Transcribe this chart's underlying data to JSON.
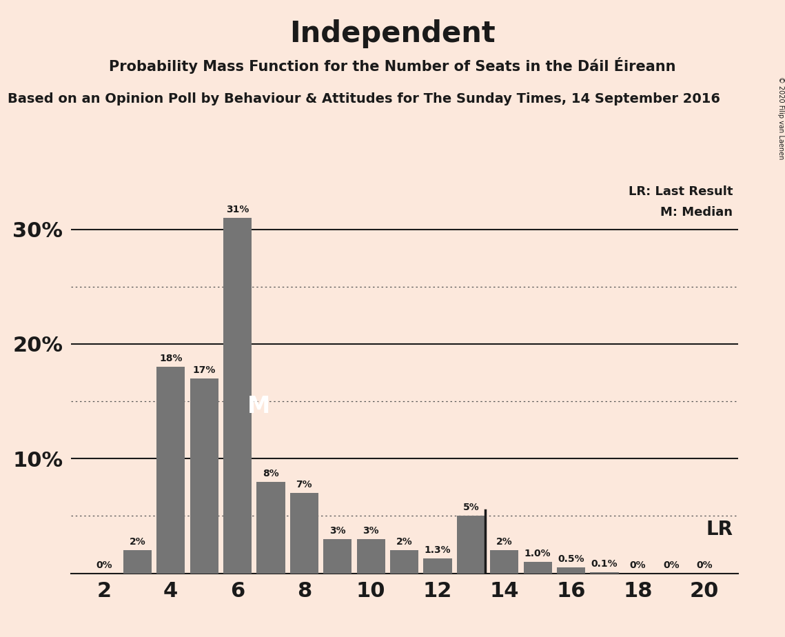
{
  "title": "Independent",
  "subtitle": "Probability Mass Function for the Number of Seats in the Dáil Éireann",
  "source_line": "Based on an Opinion Poll by Behaviour & Attitudes for The Sunday Times, 14 September 2016",
  "copyright": "© 2020 Filip van Laenen",
  "background_color": "#fce8dc",
  "bar_color": "#757575",
  "seats": [
    2,
    3,
    4,
    5,
    6,
    7,
    8,
    9,
    10,
    11,
    12,
    13,
    14,
    15,
    16,
    17,
    18,
    19,
    20
  ],
  "probabilities": [
    0.0,
    0.02,
    0.18,
    0.17,
    0.31,
    0.08,
    0.07,
    0.03,
    0.03,
    0.02,
    0.013,
    0.05,
    0.02,
    0.01,
    0.005,
    0.001,
    0.0,
    0.0,
    0.0
  ],
  "labels": [
    "0%",
    "2%",
    "18%",
    "17%",
    "31%",
    "8%",
    "7%",
    "3%",
    "3%",
    "2%",
    "1.3%",
    "5%",
    "2%",
    "1.0%",
    "0.5%",
    "0.1%",
    "0%",
    "0%",
    "0%"
  ],
  "median_seat": 6,
  "lr_seat": 13,
  "xlim": [
    1,
    21
  ],
  "ylim": [
    0,
    0.35
  ],
  "major_yticks": [
    0.1,
    0.2,
    0.3
  ],
  "major_ytick_labels": [
    "10%",
    "20%",
    "30%"
  ],
  "dotted_yticks": [
    0.05,
    0.15,
    0.25
  ],
  "xticks": [
    2,
    4,
    6,
    8,
    10,
    12,
    14,
    16,
    18,
    20
  ],
  "bar_width": 0.85,
  "legend_lr": "LR: Last Result",
  "legend_m": "M: Median",
  "lr_label": "LR",
  "median_label": "M"
}
